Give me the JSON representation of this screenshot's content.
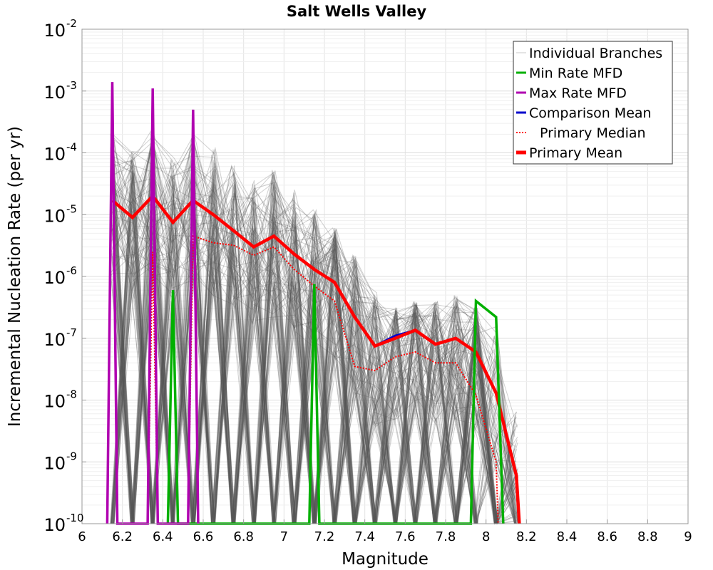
{
  "chart_data": {
    "type": "line",
    "title": "Salt Wells Valley",
    "xlabel": "Magnitude",
    "ylabel": "Incremental Nucleation Rate (per yr)",
    "xlim": [
      6,
      9
    ],
    "ylim": [
      1e-10,
      0.01
    ],
    "yscale": "log",
    "grid": true,
    "legend_position": "top-right",
    "x_ticks": [
      "6",
      "6.2",
      "6.4",
      "6.6",
      "6.8",
      "7",
      "7.2",
      "7.4",
      "7.6",
      "7.8",
      "8",
      "8.2",
      "8.4",
      "8.6",
      "8.8",
      "9"
    ],
    "y_tick_exponents": [
      "-10",
      "-9",
      "-8",
      "-7",
      "-6",
      "-5",
      "-4",
      "-3",
      "-2"
    ],
    "y_tick_base": "10",
    "legend": [
      {
        "label": "Individual Branches",
        "color": "#c8c8c8",
        "style": "thin"
      },
      {
        "label": "Min Rate MFD",
        "color": "#00b000",
        "style": "solid"
      },
      {
        "label": "Max Rate MFD",
        "color": "#b000b0",
        "style": "solid"
      },
      {
        "label": "Comparison Mean",
        "color": "#0000cc",
        "style": "solid"
      },
      {
        "label": "Primary Median",
        "color": "#ff0000",
        "style": "dotted"
      },
      {
        "label": "Primary Mean",
        "color": "#ff0000",
        "style": "thick"
      }
    ],
    "series": [
      {
        "name": "Primary Mean",
        "color": "#ff0000",
        "x": [
          6.15,
          6.25,
          6.35,
          6.45,
          6.55,
          6.65,
          6.75,
          6.85,
          6.95,
          7.05,
          7.15,
          7.25,
          7.35,
          7.45,
          7.55,
          7.65,
          7.75,
          7.85,
          7.95,
          8.05,
          8.15,
          8.165
        ],
        "y": [
          1.7e-05,
          9e-06,
          2e-05,
          7.5e-06,
          1.7e-05,
          1e-05,
          5.5e-06,
          3e-06,
          4.5e-06,
          2.3e-06,
          1.3e-06,
          8e-07,
          2.2e-07,
          7.5e-08,
          1e-07,
          1.35e-07,
          8e-08,
          1e-07,
          6e-08,
          1.3e-08,
          6e-10,
          1e-10
        ]
      },
      {
        "name": "Primary Median",
        "color": "#ff0000",
        "x": [
          6.325,
          6.35,
          6.375,
          6.525,
          6.55,
          6.65,
          6.75,
          6.85,
          6.95,
          7.05,
          7.15,
          7.25,
          7.35,
          7.45,
          7.55,
          7.65,
          7.75,
          7.85,
          7.95,
          8.05,
          8.06
        ],
        "y": [
          1e-10,
          2.5e-06,
          1e-10,
          1e-10,
          4.5e-06,
          3.5e-06,
          3.2e-06,
          2.2e-06,
          3e-06,
          1.3e-06,
          7e-07,
          4e-07,
          3.5e-08,
          3e-08,
          5e-08,
          6e-08,
          4e-08,
          4e-08,
          1.2e-08,
          1e-09,
          1e-10
        ]
      },
      {
        "name": "Comparison Mean",
        "color": "#0000cc",
        "x": [
          7.45,
          7.55,
          7.65
        ],
        "y": [
          7.5e-08,
          1.1e-07,
          1.35e-07
        ]
      },
      {
        "name": "Min Rate MFD",
        "color": "#00b000",
        "x": [
          6.425,
          6.45,
          6.475,
          7.125,
          7.15,
          7.175,
          7.925,
          7.95,
          8.05,
          8.085
        ],
        "y": [
          1e-10,
          6e-07,
          1e-10,
          1e-10,
          7.5e-07,
          1e-10,
          1e-10,
          4e-07,
          2.2e-07,
          1e-10
        ]
      },
      {
        "name": "Max Rate MFD",
        "color": "#b000b0",
        "x": [
          6.125,
          6.15,
          6.175,
          6.325,
          6.35,
          6.375,
          6.525,
          6.55,
          6.575
        ],
        "y": [
          1e-10,
          0.0014,
          1e-10,
          1e-10,
          0.0011,
          1e-10,
          1e-10,
          0.0005,
          1e-10
        ]
      }
    ]
  }
}
